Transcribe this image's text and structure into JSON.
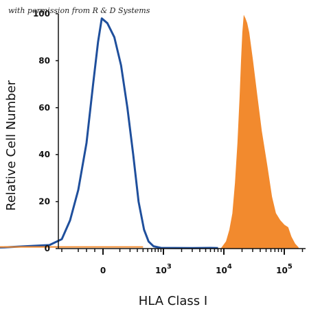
{
  "chart_data": {
    "type": "area",
    "watermark": "with permission from R & D Systems",
    "xlabel": "HLA Class I",
    "ylabel": "Relative Cell Number",
    "xscale": "biexponential",
    "xlim": [
      -3000,
      300000
    ],
    "ylim": [
      0,
      100
    ],
    "grid": false,
    "yticks": [
      {
        "value": 0,
        "label": "0"
      },
      {
        "value": 20,
        "label": "20"
      },
      {
        "value": 40,
        "label": "40"
      },
      {
        "value": 60,
        "label": "60"
      },
      {
        "value": 80,
        "label": "80"
      },
      {
        "value": 100,
        "label": "100"
      }
    ],
    "xticks": [
      {
        "value": 0,
        "label": "0",
        "exponent": ""
      },
      {
        "value": 1000,
        "label": "10",
        "exponent": "3"
      },
      {
        "value": 10000,
        "label": "10",
        "exponent": "4"
      },
      {
        "value": 100000,
        "label": "10",
        "exponent": "5"
      }
    ],
    "series": [
      {
        "style": "outline",
        "color": "#1f4f9c",
        "points": [
          [
            -2500,
            0
          ],
          [
            -1200,
            0.5
          ],
          [
            -650,
            1.5
          ],
          [
            -500,
            4
          ],
          [
            -400,
            12
          ],
          [
            -300,
            25
          ],
          [
            -200,
            45
          ],
          [
            -120,
            70
          ],
          [
            -60,
            88
          ],
          [
            -15,
            98
          ],
          [
            20,
            96
          ],
          [
            60,
            90
          ],
          [
            110,
            78
          ],
          [
            170,
            60
          ],
          [
            240,
            40
          ],
          [
            320,
            20
          ],
          [
            420,
            8
          ],
          [
            520,
            3
          ],
          [
            650,
            1
          ],
          [
            900,
            0.3
          ],
          [
            3000,
            0.2
          ],
          [
            6000,
            0.3
          ],
          [
            8000,
            0.2
          ]
        ]
      },
      {
        "style": "filled",
        "color": "#f28a2e",
        "points": [
          [
            9000,
            0
          ],
          [
            11000,
            3
          ],
          [
            12500,
            8
          ],
          [
            14000,
            15
          ],
          [
            15500,
            28
          ],
          [
            17000,
            45
          ],
          [
            18500,
            65
          ],
          [
            19500,
            80
          ],
          [
            20500,
            92
          ],
          [
            21500,
            99
          ],
          [
            22500,
            98
          ],
          [
            24000,
            96
          ],
          [
            26000,
            92
          ],
          [
            30000,
            80
          ],
          [
            35000,
            66
          ],
          [
            42000,
            50
          ],
          [
            52000,
            35
          ],
          [
            62000,
            22
          ],
          [
            72000,
            15
          ],
          [
            85000,
            12
          ],
          [
            100000,
            10
          ],
          [
            115000,
            9
          ],
          [
            130000,
            5
          ],
          [
            150000,
            2
          ],
          [
            170000,
            0.5
          ]
        ]
      },
      {
        "style": "baseline",
        "color": "#f28a2e",
        "points": [
          [
            -2000,
            0.4
          ],
          [
            400,
            0.4
          ]
        ]
      }
    ]
  }
}
